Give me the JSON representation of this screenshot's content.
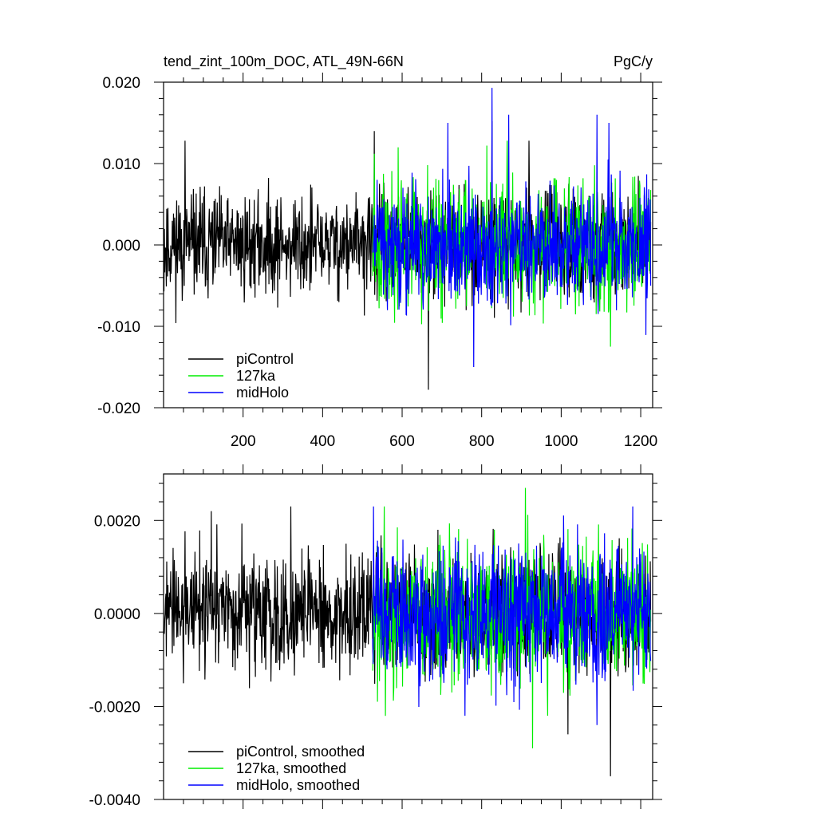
{
  "chart_data": [
    {
      "type": "line",
      "title": "tend_zint_100m_DOC, ATL_49N-66N",
      "units": "PgC/y",
      "xlim": [
        0,
        1230
      ],
      "ylim": [
        -0.02,
        0.02
      ],
      "xticks": [
        200,
        400,
        600,
        800,
        1000,
        1200
      ],
      "xtick_labels": [
        "200",
        "400",
        "600",
        "800",
        "1000",
        "1200"
      ],
      "yticks": [
        -0.02,
        -0.01,
        0.0,
        0.01,
        0.02
      ],
      "ytick_labels": [
        "-0.020",
        "-0.010",
        "0.000",
        "0.010",
        "0.020"
      ],
      "legend_position": "bottom-left",
      "grid": false,
      "series": [
        {
          "name": "piControl",
          "color": "#000000",
          "x_range": [
            1,
            1225
          ],
          "mean": 0.0,
          "amplitude": 0.0045,
          "peaks": [
            [
              54,
              0.0128
            ],
            [
              530,
              0.014
            ],
            [
              666,
              -0.0178
            ],
            [
              826,
              0.0152
            ],
            [
              919,
              0.0128
            ]
          ]
        },
        {
          "name": "127ka",
          "color": "#00ee00",
          "x_range": [
            526,
            1225
          ],
          "mean": 0.0,
          "amplitude": 0.0055,
          "peaks": [
            [
              530,
              0.0112
            ],
            [
              590,
              0.012
            ],
            [
              813,
              0.0122
            ],
            [
              864,
              0.0128
            ],
            [
              1124,
              -0.0125
            ]
          ]
        },
        {
          "name": "midHolo",
          "color": "#0000ff",
          "x_range": [
            526,
            1225
          ],
          "mean": 0.0,
          "amplitude": 0.005,
          "peaks": [
            [
              826,
              0.0193
            ],
            [
              715,
              0.015
            ],
            [
              868,
              0.016
            ],
            [
              1090,
              0.016
            ],
            [
              780,
              -0.015
            ],
            [
              1120,
              0.015
            ]
          ]
        }
      ]
    },
    {
      "type": "line",
      "title": "",
      "xlim": [
        0,
        1230
      ],
      "ylim": [
        -0.004,
        0.003
      ],
      "xticks": [
        200,
        400,
        600,
        800,
        1000,
        1200
      ],
      "yticks": [
        -0.004,
        -0.002,
        0.0,
        0.002
      ],
      "ytick_labels": [
        "-0.0040",
        "-0.0020",
        "0.0000",
        "0.0020"
      ],
      "legend_position": "bottom-left",
      "grid": false,
      "series": [
        {
          "name": "piControl, smoothed",
          "color": "#000000",
          "x_range": [
            1,
            1225
          ],
          "mean": 0.0,
          "amplitude": 0.0009,
          "peaks": [
            [
              120,
              0.0022
            ],
            [
              320,
              0.0023
            ],
            [
              690,
              0.0018
            ],
            [
              1017,
              -0.0026
            ],
            [
              1124,
              -0.0035
            ]
          ]
        },
        {
          "name": "127ka, smoothed",
          "color": "#00ee00",
          "x_range": [
            526,
            1225
          ],
          "mean": 0.0,
          "amplitude": 0.0011,
          "peaks": [
            [
              555,
              0.0023
            ],
            [
              910,
              0.0027
            ],
            [
              966,
              -0.0022
            ],
            [
              928,
              -0.0029
            ]
          ]
        },
        {
          "name": "midHolo, smoothed",
          "color": "#0000ff",
          "x_range": [
            526,
            1225
          ],
          "mean": 0.0,
          "amplitude": 0.001,
          "peaks": [
            [
              528,
              0.0023
            ],
            [
              1180,
              0.0023
            ],
            [
              758,
              -0.0022
            ],
            [
              1090,
              -0.0024
            ]
          ]
        }
      ]
    }
  ]
}
